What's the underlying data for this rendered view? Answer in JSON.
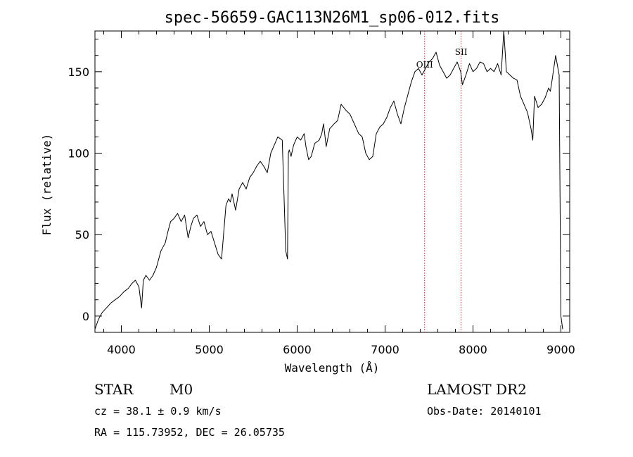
{
  "chart_data": {
    "type": "line",
    "title": "spec-56659-GAC113N26M1_sp06-012.fits",
    "xlabel": "Wavelength (Å)",
    "ylabel": "Flux (relative)",
    "xlim": [
      3700,
      9100
    ],
    "ylim": [
      -10,
      175
    ],
    "x_ticks": [
      4000,
      5000,
      6000,
      7000,
      8000,
      9000
    ],
    "y_ticks": [
      0,
      50,
      100,
      150
    ],
    "grid": false,
    "series": [
      {
        "x": [
          3700,
          3740,
          3780,
          3830,
          3880,
          3930,
          3980,
          4030,
          4080,
          4120,
          4160,
          4200,
          4230,
          4250,
          4280,
          4320,
          4360,
          4400,
          4450,
          4500,
          4530,
          4560,
          4600,
          4640,
          4680,
          4720,
          4760,
          4790,
          4820,
          4860,
          4900,
          4940,
          4980,
          5020,
          5060,
          5100,
          5140,
          5170,
          5190,
          5220,
          5240,
          5260,
          5300,
          5340,
          5380,
          5420,
          5460,
          5500,
          5540,
          5580,
          5620,
          5660,
          5700,
          5740,
          5780,
          5830,
          5870,
          5890,
          5900,
          5910,
          5930,
          5960,
          6000,
          6040,
          6080,
          6100,
          6130,
          6160,
          6200,
          6250,
          6280,
          6300,
          6330,
          6370,
          6420,
          6460,
          6500,
          6530,
          6560,
          6600,
          6650,
          6700,
          6740,
          6780,
          6820,
          6860,
          6900,
          6940,
          6980,
          7020,
          7060,
          7100,
          7140,
          7180,
          7220,
          7260,
          7300,
          7340,
          7380,
          7420,
          7460,
          7500,
          7540,
          7580,
          7620,
          7660,
          7700,
          7740,
          7780,
          7820,
          7860,
          7880,
          7920,
          7960,
          8000,
          8040,
          8080,
          8120,
          8160,
          8200,
          8240,
          8280,
          8320,
          8350,
          8380,
          8420,
          8460,
          8500,
          8540,
          8580,
          8620,
          8660,
          8680,
          8700,
          8740,
          8780,
          8820,
          8860,
          8880,
          8900,
          8940,
          8980,
          9000,
          9020
        ],
        "y": [
          -8,
          -2,
          2,
          5,
          8,
          10,
          12,
          15,
          17,
          20,
          22,
          18,
          5,
          22,
          25,
          22,
          25,
          30,
          40,
          45,
          52,
          58,
          60,
          63,
          58,
          62,
          48,
          55,
          60,
          62,
          55,
          58,
          50,
          52,
          45,
          38,
          35,
          55,
          68,
          72,
          70,
          75,
          65,
          78,
          82,
          78,
          85,
          88,
          92,
          95,
          92,
          88,
          100,
          105,
          110,
          108,
          40,
          35,
          100,
          102,
          98,
          105,
          110,
          108,
          112,
          104,
          96,
          98,
          106,
          108,
          112,
          118,
          104,
          115,
          118,
          120,
          130,
          128,
          126,
          124,
          118,
          112,
          110,
          100,
          96,
          98,
          112,
          116,
          118,
          122,
          128,
          132,
          124,
          118,
          128,
          136,
          144,
          150,
          152,
          148,
          152,
          156,
          158,
          162,
          154,
          150,
          146,
          148,
          152,
          156,
          150,
          142,
          148,
          155,
          150,
          152,
          156,
          155,
          150,
          152,
          150,
          155,
          148,
          175,
          150,
          148,
          146,
          145,
          135,
          130,
          125,
          115,
          108,
          135,
          128,
          130,
          134,
          140,
          138,
          145,
          160,
          148,
          0,
          -8
        ]
      }
    ],
    "lines": [
      {
        "x": 7450,
        "label": "OIII"
      },
      {
        "x": 7865,
        "label": "SII"
      }
    ],
    "annotations": {
      "class": "STAR",
      "subclass": "M0",
      "survey": "LAMOST DR2",
      "cz": "cz = 38.1 ± 0.9 km/s",
      "obs_date": "Obs-Date: 20140101",
      "coords": "RA = 115.73952, DEC =  26.05735"
    }
  }
}
